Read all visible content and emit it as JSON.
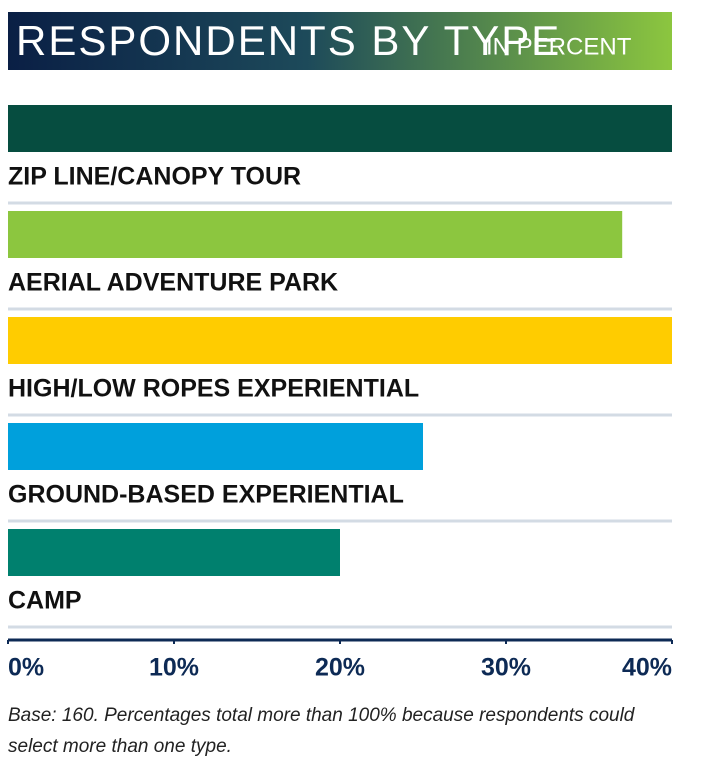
{
  "chart_data": {
    "type": "bar",
    "orientation": "horizontal",
    "title": "RESPONDENTS BY TYPE",
    "subtitle": "IN PERCENT",
    "categories": [
      "ZIP LINE/CANOPY TOUR",
      "AERIAL ADVENTURE PARK",
      "HIGH/LOW ROPES EXPERIENTIAL",
      "GROUND-BASED EXPERIENTIAL",
      "CAMP"
    ],
    "values": [
      40,
      37,
      40,
      25,
      20
    ],
    "colors": [
      "#064d40",
      "#8cc63f",
      "#ffcc00",
      "#00a0dc",
      "#00806e"
    ],
    "xlim": [
      0,
      40
    ],
    "xticks": [
      {
        "value": 0,
        "label": "0%"
      },
      {
        "value": 10,
        "label": "10%"
      },
      {
        "value": 20,
        "label": "20%"
      },
      {
        "value": 30,
        "label": "30%"
      },
      {
        "value": 40,
        "label": "40%"
      }
    ],
    "note": "Base: 160. Percentages total more than 100% because respondents could select more than one type."
  }
}
